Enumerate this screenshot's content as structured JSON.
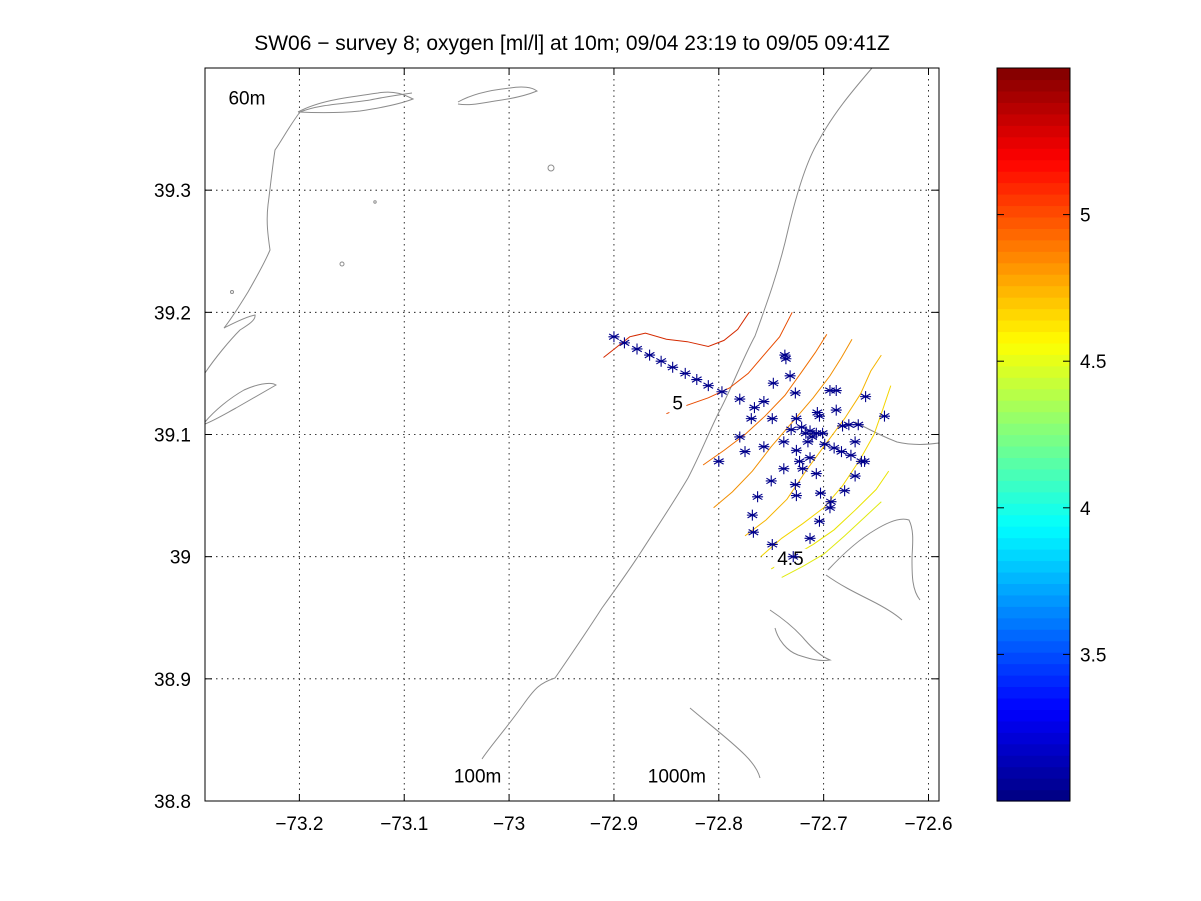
{
  "chart_data": {
    "type": "scatter",
    "title": "SW06 − survey 8; oxygen [ml/l] at 10m; 09/04 23:19 to 09/05 09:41Z",
    "xlim": [
      -73.29,
      -72.59
    ],
    "ylim": [
      38.8,
      39.4
    ],
    "x_ticks": [
      {
        "value": -73.2,
        "label": "−73.2"
      },
      {
        "value": -73.1,
        "label": "−73.1"
      },
      {
        "value": -73.0,
        "label": "−73"
      },
      {
        "value": -72.9,
        "label": "−72.9"
      },
      {
        "value": -72.8,
        "label": "−72.8"
      },
      {
        "value": -72.7,
        "label": "−72.7"
      },
      {
        "value": -72.6,
        "label": "−72.6"
      }
    ],
    "y_ticks": [
      {
        "value": 38.8,
        "label": "38.8"
      },
      {
        "value": 38.9,
        "label": "38.9"
      },
      {
        "value": 39.0,
        "label": "39"
      },
      {
        "value": 39.1,
        "label": "39.1"
      },
      {
        "value": 39.2,
        "label": "39.2"
      },
      {
        "value": 39.3,
        "label": "39.3"
      }
    ],
    "grid": "dotted",
    "depth_labels": [
      {
        "text": "60m",
        "x": -73.25,
        "y": 39.37
      },
      {
        "text": "100m",
        "x": -73.03,
        "y": 38.815
      },
      {
        "text": "1000m",
        "x": -72.84,
        "y": 38.815
      }
    ],
    "station_marker": "*",
    "station_color": "#00008b",
    "stations": [
      [
        -72.9,
        39.18
      ],
      [
        -72.89,
        39.175
      ],
      [
        -72.878,
        39.17
      ],
      [
        -72.866,
        39.165
      ],
      [
        -72.855,
        39.16
      ],
      [
        -72.844,
        39.155
      ],
      [
        -72.832,
        39.15
      ],
      [
        -72.821,
        39.145
      ],
      [
        -72.81,
        39.14
      ],
      [
        -72.797,
        39.135
      ],
      [
        -72.737,
        39.165
      ],
      [
        -72.736,
        39.162
      ],
      [
        -72.732,
        39.148
      ],
      [
        -72.727,
        39.134
      ],
      [
        -72.748,
        39.142
      ],
      [
        -72.78,
        39.129
      ],
      [
        -72.766,
        39.122
      ],
      [
        -72.757,
        39.127
      ],
      [
        -72.769,
        39.113
      ],
      [
        -72.749,
        39.113
      ],
      [
        -72.726,
        39.113
      ],
      [
        -72.694,
        39.136
      ],
      [
        -72.688,
        39.136
      ],
      [
        -72.66,
        39.131
      ],
      [
        -72.642,
        39.115
      ],
      [
        -72.688,
        39.12
      ],
      [
        -72.706,
        39.118
      ],
      [
        -72.704,
        39.115
      ],
      [
        -72.721,
        39.106
      ],
      [
        -72.731,
        39.104
      ],
      [
        -72.738,
        39.094
      ],
      [
        -72.717,
        39.101
      ],
      [
        -72.713,
        39.103
      ],
      [
        -72.711,
        39.098
      ],
      [
        -72.715,
        39.094
      ],
      [
        -72.707,
        39.101
      ],
      [
        -72.701,
        39.101
      ],
      [
        -72.699,
        39.092
      ],
      [
        -72.682,
        39.107
      ],
      [
        -72.676,
        39.108
      ],
      [
        -72.667,
        39.108
      ],
      [
        -72.67,
        39.094
      ],
      [
        -72.69,
        39.089
      ],
      [
        -72.683,
        39.086
      ],
      [
        -72.674,
        39.083
      ],
      [
        -72.664,
        39.078
      ],
      [
        -72.661,
        39.078
      ],
      [
        -72.78,
        39.098
      ],
      [
        -72.775,
        39.086
      ],
      [
        -72.757,
        39.09
      ],
      [
        -72.726,
        39.087
      ],
      [
        -72.723,
        39.078
      ],
      [
        -72.713,
        39.081
      ],
      [
        -72.738,
        39.072
      ],
      [
        -72.72,
        39.072
      ],
      [
        -72.707,
        39.068
      ],
      [
        -72.67,
        39.066
      ],
      [
        -72.8,
        39.078
      ],
      [
        -72.75,
        39.062
      ],
      [
        -72.727,
        39.059
      ],
      [
        -72.763,
        39.049
      ],
      [
        -72.726,
        39.05
      ],
      [
        -72.703,
        39.052
      ],
      [
        -72.693,
        39.045
      ],
      [
        -72.68,
        39.054
      ],
      [
        -72.694,
        39.04
      ],
      [
        -72.768,
        39.034
      ],
      [
        -72.767,
        39.02
      ],
      [
        -72.704,
        39.029
      ],
      [
        -72.749,
        39.01
      ],
      [
        -72.713,
        39.015
      ],
      [
        -72.729,
        39.0
      ]
    ],
    "contours": [
      {
        "level": 5.1,
        "color": "#d42a00",
        "points": [
          [
            -72.91,
            39.163
          ],
          [
            -72.885,
            39.18
          ],
          [
            -72.87,
            39.183
          ],
          [
            -72.85,
            39.178
          ],
          [
            -72.83,
            39.176
          ],
          [
            -72.81,
            39.172
          ],
          [
            -72.795,
            39.177
          ],
          [
            -72.782,
            39.186
          ],
          [
            -72.771,
            39.2
          ]
        ]
      },
      {
        "level": 5.0,
        "color": "#e84b00",
        "label": "5",
        "points": [
          [
            -72.85,
            39.117
          ],
          [
            -72.83,
            39.124
          ],
          [
            -72.81,
            39.13
          ],
          [
            -72.79,
            39.138
          ],
          [
            -72.772,
            39.15
          ],
          [
            -72.758,
            39.164
          ],
          [
            -72.742,
            39.18
          ],
          [
            -72.73,
            39.2
          ]
        ]
      },
      {
        "level": 4.9,
        "color": "#f06e00",
        "points": [
          [
            -72.815,
            39.075
          ],
          [
            -72.795,
            39.087
          ],
          [
            -72.775,
            39.1
          ],
          [
            -72.756,
            39.115
          ],
          [
            -72.737,
            39.132
          ],
          [
            -72.722,
            39.15
          ],
          [
            -72.708,
            39.167
          ],
          [
            -72.697,
            39.182
          ]
        ]
      },
      {
        "level": 4.8,
        "color": "#f28f00",
        "points": [
          [
            -72.805,
            39.04
          ],
          [
            -72.787,
            39.053
          ],
          [
            -72.768,
            39.07
          ],
          [
            -72.75,
            39.09
          ],
          [
            -72.73,
            39.11
          ],
          [
            -72.71,
            39.13
          ],
          [
            -72.694,
            39.148
          ],
          [
            -72.683,
            39.163
          ],
          [
            -72.673,
            39.178
          ]
        ]
      },
      {
        "level": 4.7,
        "color": "#f5b400",
        "points": [
          [
            -72.775,
            39.017
          ],
          [
            -72.755,
            39.03
          ],
          [
            -72.735,
            39.047
          ],
          [
            -72.717,
            39.07
          ],
          [
            -72.7,
            39.09
          ],
          [
            -72.68,
            39.113
          ],
          [
            -72.665,
            39.133
          ],
          [
            -72.655,
            39.152
          ],
          [
            -72.645,
            39.165
          ]
        ]
      },
      {
        "level": 4.6,
        "color": "#f3d500",
        "points": [
          [
            -72.76,
            39.0
          ],
          [
            -72.74,
            39.015
          ],
          [
            -72.72,
            39.027
          ],
          [
            -72.7,
            39.04
          ],
          [
            -72.682,
            39.058
          ],
          [
            -72.665,
            39.08
          ],
          [
            -72.652,
            39.1
          ],
          [
            -72.643,
            39.122
          ],
          [
            -72.636,
            39.14
          ]
        ]
      },
      {
        "level": 4.5,
        "color": "#e9e400",
        "label": "4.5",
        "points": [
          [
            -72.75,
            38.99
          ],
          [
            -72.73,
            39.0
          ],
          [
            -72.71,
            39.01
          ],
          [
            -72.69,
            39.022
          ],
          [
            -72.67,
            39.038
          ],
          [
            -72.65,
            39.055
          ],
          [
            -72.638,
            39.07
          ]
        ]
      },
      {
        "level": 4.45,
        "color": "#e0ea10",
        "points": [
          [
            -72.74,
            38.983
          ],
          [
            -72.72,
            38.992
          ],
          [
            -72.7,
            39.002
          ],
          [
            -72.68,
            39.017
          ],
          [
            -72.66,
            39.033
          ],
          [
            -72.645,
            39.045
          ]
        ]
      }
    ],
    "colorbar": {
      "range": [
        3.0,
        5.5
      ],
      "ticks": [
        {
          "value": 3.5,
          "label": "3.5"
        },
        {
          "value": 4.0,
          "label": "4"
        },
        {
          "value": 4.5,
          "label": "4.5"
        },
        {
          "value": 5.0,
          "label": "5"
        }
      ]
    }
  }
}
